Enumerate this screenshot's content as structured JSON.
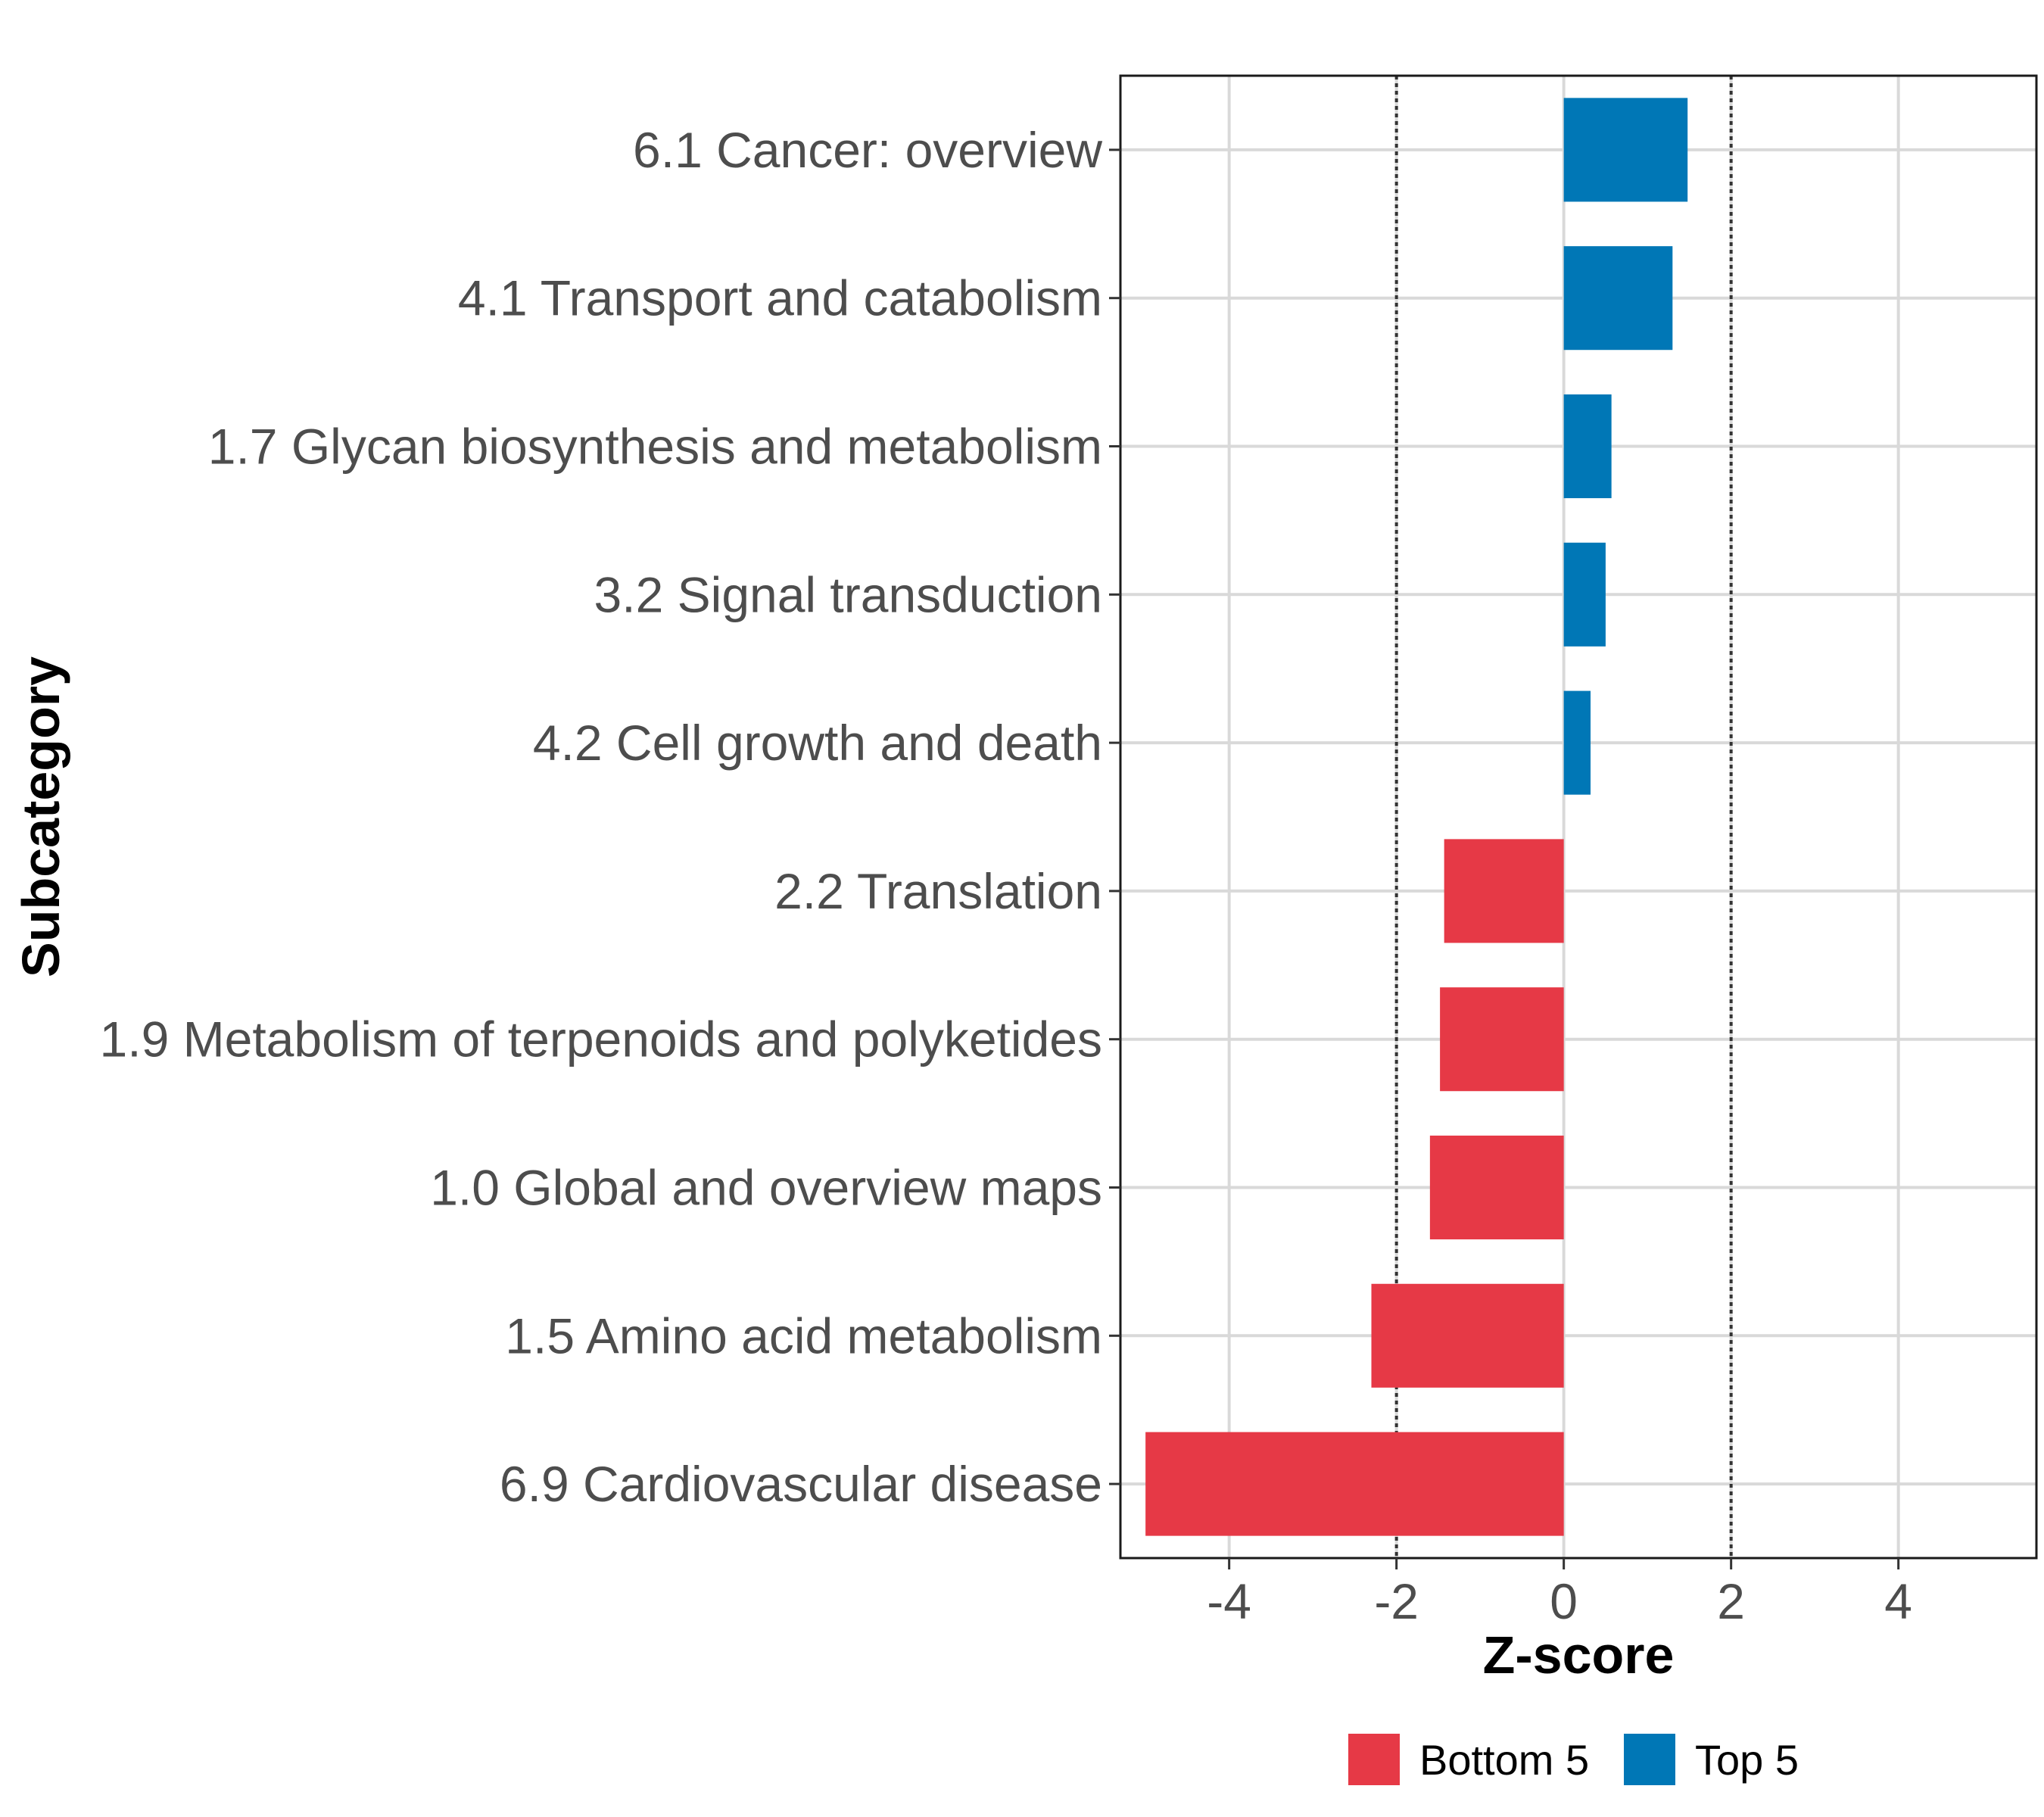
{
  "chart_data": {
    "type": "bar",
    "orientation": "horizontal",
    "title": "",
    "xlabel": "Z-score",
    "ylabel": "Subcategory",
    "xlim": [
      -5.3,
      5.65
    ],
    "x_ticks": [
      -4,
      -2,
      0,
      2,
      4
    ],
    "x_tick_labels": [
      "-4",
      "-2",
      "0",
      "2",
      "4"
    ],
    "reference_lines": [
      -2,
      2
    ],
    "grid": true,
    "categories": [
      "6.1 Cancer: overview",
      "4.1 Transport and catabolism",
      "1.7 Glycan biosynthesis and metabolism",
      "3.2 Signal transduction",
      "4.2 Cell growth and death",
      "2.2 Translation",
      "1.9 Metabolism of terpenoids and polyketides",
      "1.0 Global and overview maps",
      "1.5 Amino acid metabolism",
      "6.9 Cardiovascular disease"
    ],
    "values": [
      1.48,
      1.3,
      0.57,
      0.5,
      0.32,
      -1.43,
      -1.48,
      -1.6,
      -2.3,
      -5.0
    ],
    "groups": [
      "Top 5",
      "Top 5",
      "Top 5",
      "Top 5",
      "Top 5",
      "Bottom 5",
      "Bottom 5",
      "Bottom 5",
      "Bottom 5",
      "Bottom 5"
    ],
    "legend": {
      "position": "bottom",
      "entries": [
        {
          "label": "Bottom 5",
          "color": "#e63946"
        },
        {
          "label": "Top 5",
          "color": "#0077b6"
        }
      ]
    },
    "colors": {
      "Top 5": "#0077b6",
      "Bottom 5": "#e63946"
    }
  }
}
